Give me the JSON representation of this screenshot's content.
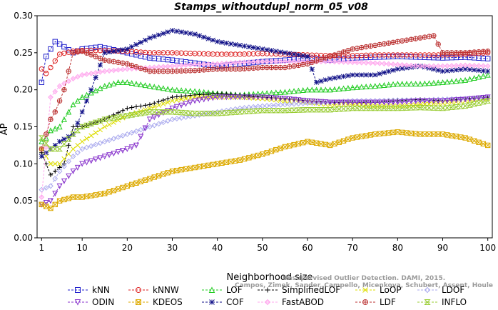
{
  "chart_data": {
    "type": "line",
    "title": "Stamps_withoutdupl_norm_05_v08",
    "xlabel": "Neighborhood size",
    "ylabel": "AP",
    "xlim": [
      0,
      101
    ],
    "ylim": [
      0.0,
      0.3
    ],
    "xticks": [
      "1",
      "10",
      "20",
      "30",
      "40",
      "50",
      "60",
      "70",
      "80",
      "90",
      "100"
    ],
    "xtick_values": [
      1,
      10,
      20,
      30,
      40,
      50,
      60,
      70,
      80,
      90,
      100
    ],
    "yticks": [
      "0.00",
      "0.05",
      "0.10",
      "0.15",
      "0.20",
      "0.25",
      "0.30"
    ],
    "ytick_values": [
      0.0,
      0.05,
      0.1,
      0.15,
      0.2,
      0.25,
      0.3
    ],
    "grid": false,
    "legend_position": "bottom",
    "series": [
      {
        "name": "kNN",
        "color": "#2222cc",
        "marker": "square",
        "points": [
          [
            1,
            0.21
          ],
          [
            2,
            0.245
          ],
          [
            3,
            0.255
          ],
          [
            4,
            0.265
          ],
          [
            6,
            0.258
          ],
          [
            8,
            0.25
          ],
          [
            10,
            0.255
          ],
          [
            14,
            0.258
          ],
          [
            20,
            0.25
          ],
          [
            25,
            0.243
          ],
          [
            30,
            0.24
          ],
          [
            35,
            0.236
          ],
          [
            40,
            0.232
          ],
          [
            45,
            0.235
          ],
          [
            50,
            0.238
          ],
          [
            55,
            0.24
          ],
          [
            60,
            0.243
          ],
          [
            65,
            0.24
          ],
          [
            70,
            0.243
          ],
          [
            75,
            0.244
          ],
          [
            80,
            0.245
          ],
          [
            85,
            0.244
          ],
          [
            90,
            0.243
          ],
          [
            95,
            0.244
          ],
          [
            100,
            0.242
          ]
        ]
      },
      {
        "name": "kNNW",
        "color": "#dd2222",
        "marker": "circle",
        "points": [
          [
            1,
            0.228
          ],
          [
            2,
            0.222
          ],
          [
            3,
            0.23
          ],
          [
            5,
            0.248
          ],
          [
            8,
            0.252
          ],
          [
            10,
            0.253
          ],
          [
            15,
            0.253
          ],
          [
            20,
            0.252
          ],
          [
            25,
            0.25
          ],
          [
            30,
            0.25
          ],
          [
            35,
            0.249
          ],
          [
            40,
            0.248
          ],
          [
            45,
            0.248
          ],
          [
            50,
            0.249
          ],
          [
            55,
            0.248
          ],
          [
            60,
            0.247
          ],
          [
            65,
            0.246
          ],
          [
            70,
            0.246
          ],
          [
            75,
            0.247
          ],
          [
            80,
            0.247
          ],
          [
            85,
            0.247
          ],
          [
            90,
            0.247
          ],
          [
            95,
            0.248
          ],
          [
            100,
            0.25
          ]
        ]
      },
      {
        "name": "LOF",
        "color": "#22cc22",
        "marker": "triangle",
        "points": [
          [
            1,
            0.13
          ],
          [
            2,
            0.135
          ],
          [
            3,
            0.145
          ],
          [
            5,
            0.15
          ],
          [
            8,
            0.18
          ],
          [
            10,
            0.19
          ],
          [
            15,
            0.205
          ],
          [
            18,
            0.21
          ],
          [
            20,
            0.21
          ],
          [
            25,
            0.205
          ],
          [
            30,
            0.2
          ],
          [
            35,
            0.198
          ],
          [
            40,
            0.195
          ],
          [
            45,
            0.193
          ],
          [
            50,
            0.195
          ],
          [
            55,
            0.197
          ],
          [
            60,
            0.2
          ],
          [
            65,
            0.2
          ],
          [
            70,
            0.203
          ],
          [
            75,
            0.205
          ],
          [
            80,
            0.208
          ],
          [
            85,
            0.208
          ],
          [
            90,
            0.21
          ],
          [
            95,
            0.213
          ],
          [
            100,
            0.22
          ]
        ]
      },
      {
        "name": "SimplifiedLOF",
        "color": "#000000",
        "marker": "plus",
        "points": [
          [
            1,
            0.115
          ],
          [
            2,
            0.1
          ],
          [
            3,
            0.085
          ],
          [
            4,
            0.09
          ],
          [
            6,
            0.1
          ],
          [
            8,
            0.15
          ],
          [
            10,
            0.15
          ],
          [
            15,
            0.16
          ],
          [
            20,
            0.175
          ],
          [
            25,
            0.18
          ],
          [
            30,
            0.19
          ],
          [
            35,
            0.193
          ],
          [
            40,
            0.195
          ],
          [
            45,
            0.193
          ],
          [
            50,
            0.19
          ],
          [
            55,
            0.188
          ],
          [
            60,
            0.185
          ],
          [
            65,
            0.183
          ],
          [
            70,
            0.183
          ],
          [
            75,
            0.183
          ],
          [
            80,
            0.185
          ],
          [
            85,
            0.187
          ],
          [
            90,
            0.185
          ],
          [
            95,
            0.188
          ],
          [
            100,
            0.19
          ]
        ]
      },
      {
        "name": "LoOP",
        "color": "#dddd00",
        "marker": "x",
        "points": [
          [
            1,
            0.12
          ],
          [
            2,
            0.11
          ],
          [
            3,
            0.1
          ],
          [
            5,
            0.1
          ],
          [
            8,
            0.12
          ],
          [
            10,
            0.13
          ],
          [
            15,
            0.15
          ],
          [
            20,
            0.165
          ],
          [
            25,
            0.175
          ],
          [
            30,
            0.185
          ],
          [
            35,
            0.19
          ],
          [
            40,
            0.19
          ],
          [
            45,
            0.19
          ],
          [
            50,
            0.188
          ],
          [
            55,
            0.185
          ],
          [
            60,
            0.183
          ],
          [
            65,
            0.18
          ],
          [
            70,
            0.18
          ],
          [
            75,
            0.178
          ],
          [
            80,
            0.178
          ],
          [
            85,
            0.18
          ],
          [
            90,
            0.182
          ],
          [
            95,
            0.185
          ],
          [
            100,
            0.188
          ]
        ]
      },
      {
        "name": "LDOF",
        "color": "#aaaaee",
        "marker": "diamond",
        "points": [
          [
            1,
            0.065
          ],
          [
            3,
            0.07
          ],
          [
            5,
            0.09
          ],
          [
            8,
            0.11
          ],
          [
            10,
            0.12
          ],
          [
            15,
            0.13
          ],
          [
            20,
            0.14
          ],
          [
            25,
            0.15
          ],
          [
            30,
            0.16
          ],
          [
            35,
            0.165
          ],
          [
            40,
            0.17
          ],
          [
            45,
            0.175
          ],
          [
            50,
            0.178
          ],
          [
            55,
            0.18
          ],
          [
            60,
            0.182
          ],
          [
            65,
            0.183
          ],
          [
            70,
            0.185
          ],
          [
            75,
            0.185
          ],
          [
            80,
            0.186
          ],
          [
            85,
            0.186
          ],
          [
            90,
            0.187
          ],
          [
            95,
            0.188
          ],
          [
            100,
            0.19
          ]
        ]
      },
      {
        "name": "ODIN",
        "color": "#8833cc",
        "marker": "triangle-down",
        "points": [
          [
            1,
            0.045
          ],
          [
            3,
            0.05
          ],
          [
            5,
            0.07
          ],
          [
            8,
            0.09
          ],
          [
            10,
            0.1
          ],
          [
            15,
            0.11
          ],
          [
            20,
            0.12
          ],
          [
            22,
            0.125
          ],
          [
            25,
            0.16
          ],
          [
            30,
            0.175
          ],
          [
            35,
            0.185
          ],
          [
            40,
            0.19
          ],
          [
            45,
            0.19
          ],
          [
            50,
            0.19
          ],
          [
            55,
            0.188
          ],
          [
            60,
            0.185
          ],
          [
            65,
            0.183
          ],
          [
            70,
            0.183
          ],
          [
            75,
            0.183
          ],
          [
            80,
            0.183
          ],
          [
            85,
            0.185
          ],
          [
            90,
            0.185
          ],
          [
            95,
            0.187
          ],
          [
            100,
            0.19
          ]
        ]
      },
      {
        "name": "KDEOS",
        "color": "#ddaa00",
        "marker": "square-x",
        "points": [
          [
            1,
            0.045
          ],
          [
            3,
            0.04
          ],
          [
            5,
            0.05
          ],
          [
            8,
            0.055
          ],
          [
            10,
            0.055
          ],
          [
            15,
            0.06
          ],
          [
            20,
            0.07
          ],
          [
            25,
            0.08
          ],
          [
            30,
            0.09
          ],
          [
            35,
            0.095
          ],
          [
            40,
            0.1
          ],
          [
            45,
            0.105
          ],
          [
            50,
            0.113
          ],
          [
            55,
            0.123
          ],
          [
            60,
            0.13
          ],
          [
            65,
            0.125
          ],
          [
            70,
            0.135
          ],
          [
            75,
            0.14
          ],
          [
            80,
            0.143
          ],
          [
            85,
            0.14
          ],
          [
            90,
            0.14
          ],
          [
            95,
            0.135
          ],
          [
            100,
            0.125
          ]
        ]
      },
      {
        "name": "COF",
        "color": "#111188",
        "marker": "star",
        "points": [
          [
            1,
            0.11
          ],
          [
            3,
            0.12
          ],
          [
            5,
            0.13
          ],
          [
            8,
            0.14
          ],
          [
            10,
            0.17
          ],
          [
            12,
            0.2
          ],
          [
            15,
            0.25
          ],
          [
            20,
            0.255
          ],
          [
            25,
            0.27
          ],
          [
            30,
            0.28
          ],
          [
            35,
            0.275
          ],
          [
            40,
            0.265
          ],
          [
            45,
            0.26
          ],
          [
            50,
            0.255
          ],
          [
            55,
            0.25
          ],
          [
            60,
            0.245
          ],
          [
            62,
            0.21
          ],
          [
            65,
            0.215
          ],
          [
            70,
            0.22
          ],
          [
            75,
            0.22
          ],
          [
            80,
            0.228
          ],
          [
            85,
            0.232
          ],
          [
            90,
            0.225
          ],
          [
            95,
            0.228
          ],
          [
            100,
            0.225
          ]
        ]
      },
      {
        "name": "FastABOD",
        "color": "#ffaaee",
        "marker": "diamond-filled",
        "points": [
          [
            1,
            0.055
          ],
          [
            3,
            0.19
          ],
          [
            5,
            0.205
          ],
          [
            8,
            0.215
          ],
          [
            10,
            0.22
          ],
          [
            15,
            0.225
          ],
          [
            20,
            0.228
          ],
          [
            25,
            0.23
          ],
          [
            30,
            0.232
          ],
          [
            35,
            0.234
          ],
          [
            40,
            0.235
          ],
          [
            45,
            0.237
          ],
          [
            50,
            0.238
          ],
          [
            55,
            0.238
          ],
          [
            60,
            0.238
          ],
          [
            65,
            0.238
          ],
          [
            70,
            0.237
          ],
          [
            75,
            0.236
          ],
          [
            80,
            0.234
          ],
          [
            85,
            0.232
          ],
          [
            90,
            0.232
          ],
          [
            95,
            0.233
          ],
          [
            100,
            0.232
          ]
        ]
      },
      {
        "name": "LDF",
        "color": "#bb3333",
        "marker": "circle-plus",
        "points": [
          [
            1,
            0.12
          ],
          [
            2,
            0.14
          ],
          [
            3,
            0.16
          ],
          [
            4,
            0.17
          ],
          [
            6,
            0.2
          ],
          [
            8,
            0.25
          ],
          [
            10,
            0.252
          ],
          [
            15,
            0.24
          ],
          [
            20,
            0.235
          ],
          [
            25,
            0.225
          ],
          [
            30,
            0.225
          ],
          [
            35,
            0.226
          ],
          [
            40,
            0.228
          ],
          [
            45,
            0.228
          ],
          [
            50,
            0.23
          ],
          [
            55,
            0.23
          ],
          [
            60,
            0.235
          ],
          [
            65,
            0.245
          ],
          [
            70,
            0.255
          ],
          [
            75,
            0.26
          ],
          [
            80,
            0.265
          ],
          [
            85,
            0.27
          ],
          [
            88,
            0.273
          ],
          [
            90,
            0.25
          ],
          [
            95,
            0.25
          ],
          [
            100,
            0.252
          ]
        ]
      },
      {
        "name": "INFLO",
        "color": "#99cc33",
        "marker": "hourglass",
        "points": [
          [
            1,
            0.135
          ],
          [
            3,
            0.12
          ],
          [
            5,
            0.12
          ],
          [
            8,
            0.14
          ],
          [
            10,
            0.15
          ],
          [
            15,
            0.16
          ],
          [
            20,
            0.165
          ],
          [
            25,
            0.17
          ],
          [
            30,
            0.17
          ],
          [
            35,
            0.168
          ],
          [
            40,
            0.168
          ],
          [
            45,
            0.17
          ],
          [
            50,
            0.172
          ],
          [
            55,
            0.172
          ],
          [
            60,
            0.173
          ],
          [
            65,
            0.173
          ],
          [
            70,
            0.175
          ],
          [
            75,
            0.175
          ],
          [
            80,
            0.175
          ],
          [
            85,
            0.176
          ],
          [
            90,
            0.175
          ],
          [
            95,
            0.178
          ],
          [
            100,
            0.185
          ]
        ]
      }
    ]
  },
  "watermark": {
    "line1": "Unsupervised Outlier Detection. DAMI, 2015.",
    "line2": "Campos, Zimek, Sander, Campello, Micenkova, Schubert, Assent, Houle"
  }
}
